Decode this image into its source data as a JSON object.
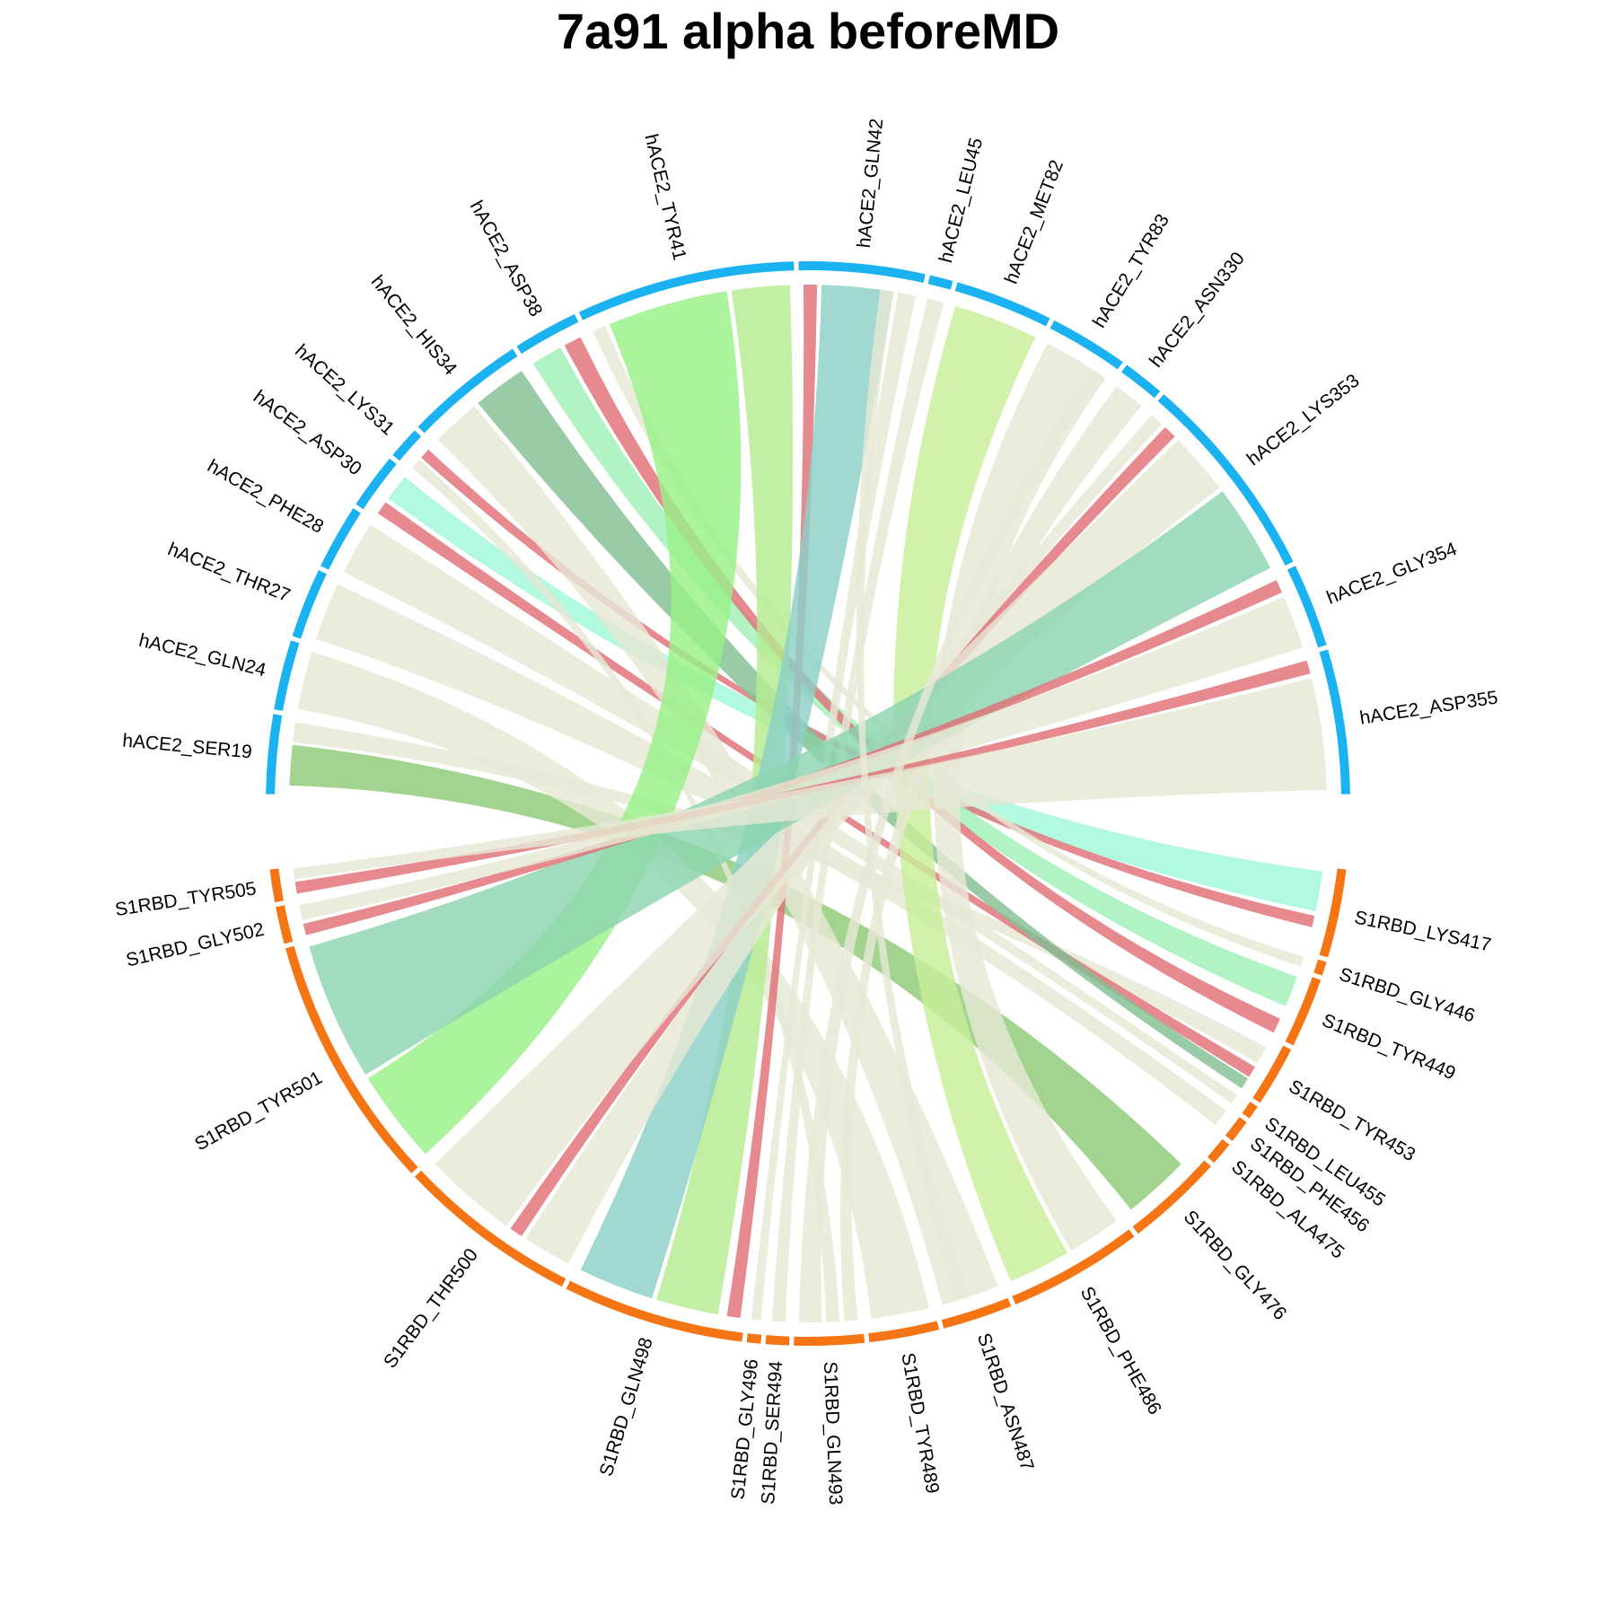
{
  "title": "7a91 alpha beforeMD",
  "colors": {
    "hACE2": "#1AB2F0",
    "S1RBD": "#F57514",
    "default_link": "#E6E8D4",
    "red_link": "#E07077"
  },
  "chart_data": {
    "type": "chord",
    "sectors": [
      {
        "name": "hACE2_SER19",
        "group": "hACE2",
        "start": 271,
        "end": 279.5
      },
      {
        "name": "hACE2_GLN24",
        "group": "hACE2",
        "start": 280,
        "end": 287.5
      },
      {
        "name": "hACE2_THR27",
        "group": "hACE2",
        "start": 288,
        "end": 295.5
      },
      {
        "name": "hACE2_PHE28",
        "group": "hACE2",
        "start": 296,
        "end": 303
      },
      {
        "name": "hACE2_ASP30",
        "group": "hACE2",
        "start": 303.5,
        "end": 309.5
      },
      {
        "name": "hACE2_LYS31",
        "group": "hACE2",
        "start": 310,
        "end": 313.5
      },
      {
        "name": "hACE2_HIS34",
        "group": "hACE2",
        "start": 314,
        "end": 327
      },
      {
        "name": "hACE2_ASP38",
        "group": "hACE2",
        "start": 327.5,
        "end": 334.5
      },
      {
        "name": "hACE2_TYR41",
        "group": "hACE2",
        "start": 335,
        "end": 358.5
      },
      {
        "name": "hACE2_GLN42",
        "group": "hACE2",
        "start": 359,
        "end": 12.5
      },
      {
        "name": "hACE2_LEU45",
        "group": "hACE2",
        "start": 13,
        "end": 15.5
      },
      {
        "name": "hACE2_MET82",
        "group": "hACE2",
        "start": 16,
        "end": 26.5
      },
      {
        "name": "hACE2_TYR83",
        "group": "hACE2",
        "start": 27,
        "end": 35.5
      },
      {
        "name": "hACE2_ASN330",
        "group": "hACE2",
        "start": 36,
        "end": 40.5
      },
      {
        "name": "hACE2_LYS353",
        "group": "hACE2",
        "start": 41,
        "end": 63.5
      },
      {
        "name": "hACE2_GLY354",
        "group": "hACE2",
        "start": 64,
        "end": 73
      },
      {
        "name": "hACE2_ASP355",
        "group": "hACE2",
        "start": 73.5,
        "end": 89
      },
      {
        "name": "S1RBD_LYS417",
        "group": "S1RBD",
        "start": 97,
        "end": 106.5
      },
      {
        "name": "S1RBD_GLY446",
        "group": "S1RBD",
        "start": 107,
        "end": 108.5
      },
      {
        "name": "S1RBD_TYR449",
        "group": "S1RBD",
        "start": 109,
        "end": 116.5
      },
      {
        "name": "S1RBD_TYR453",
        "group": "S1RBD",
        "start": 117,
        "end": 123.5
      },
      {
        "name": "S1RBD_LEU455",
        "group": "S1RBD",
        "start": 124,
        "end": 125.5
      },
      {
        "name": "S1RBD_PHE456",
        "group": "S1RBD",
        "start": 126,
        "end": 128.5
      },
      {
        "name": "S1RBD_ALA475",
        "group": "S1RBD",
        "start": 129,
        "end": 131.5
      },
      {
        "name": "S1RBD_GLY476",
        "group": "S1RBD",
        "start": 132,
        "end": 142.5
      },
      {
        "name": "S1RBD_PHE486",
        "group": "S1RBD",
        "start": 143,
        "end": 157.5
      },
      {
        "name": "S1RBD_ASN487",
        "group": "S1RBD",
        "start": 158,
        "end": 165.5
      },
      {
        "name": "S1RBD_TYR489",
        "group": "S1RBD",
        "start": 166,
        "end": 173.5
      },
      {
        "name": "S1RBD_GLN493",
        "group": "S1RBD",
        "start": 174,
        "end": 181.5
      },
      {
        "name": "S1RBD_SER494",
        "group": "S1RBD",
        "start": 182,
        "end": 184.5
      },
      {
        "name": "S1RBD_GLY496",
        "group": "S1RBD",
        "start": 185,
        "end": 186.5
      },
      {
        "name": "S1RBD_GLN498",
        "group": "S1RBD",
        "start": 187,
        "end": 206.5
      },
      {
        "name": "S1RBD_THR500",
        "group": "S1RBD",
        "start": 207,
        "end": 226.5
      },
      {
        "name": "S1RBD_TYR501",
        "group": "S1RBD",
        "start": 227,
        "end": 254.5
      },
      {
        "name": "S1RBD_GLY502",
        "group": "S1RBD",
        "start": 255,
        "end": 259
      },
      {
        "name": "S1RBD_TYR505",
        "group": "S1RBD",
        "start": 259.5,
        "end": 263
      }
    ],
    "links": [
      {
        "from": "hACE2_SER19",
        "to": "S1RBD_GLY476",
        "a": [
          272,
          276.5
        ],
        "b": [
          134,
          141.5
        ],
        "color": "#8FCB76"
      },
      {
        "from": "hACE2_SER19",
        "to": "S1RBD_TYR453",
        "a": [
          276.8,
          279
        ],
        "b": [
          118,
          120
        ],
        "color": "#E6E8D4"
      },
      {
        "from": "hACE2_GLN24",
        "to": "S1RBD_TYR489",
        "a": [
          280.5,
          287
        ],
        "b": [
          166.5,
          173
        ],
        "color": "#E6E8D4"
      },
      {
        "from": "hACE2_THR27",
        "to": "S1RBD_PHE456",
        "a": [
          288.5,
          295
        ],
        "b": [
          126.3,
          128.3
        ],
        "color": "#E6E8D4"
      },
      {
        "from": "hACE2_PHE28",
        "to": "S1RBD_LEU455",
        "a": [
          296.5,
          302.5
        ],
        "b": [
          124.2,
          125.3
        ],
        "color": "#E6E8D4"
      },
      {
        "from": "hACE2_ASP30",
        "to": "S1RBD_TYR453",
        "a": [
          304,
          305.5
        ],
        "b": [
          120.5,
          121.8
        ],
        "color": "#E07077"
      },
      {
        "from": "hACE2_ASP30",
        "to": "S1RBD_LYS417",
        "a": [
          306,
          309
        ],
        "b": [
          97.5,
          102
        ],
        "color": "#A0F8D8"
      },
      {
        "from": "hACE2_LYS31",
        "to": "S1RBD_GLN493",
        "a": [
          310.3,
          311.5
        ],
        "b": [
          176.5,
          178
        ],
        "color": "#E6E8D4"
      },
      {
        "from": "hACE2_LYS31",
        "to": "S1RBD_LYS417",
        "a": [
          311.8,
          313
        ],
        "b": [
          102.5,
          103.8
        ],
        "color": "#E07077"
      },
      {
        "from": "hACE2_HIS34",
        "to": "S1RBD_ASN487",
        "a": [
          314.5,
          320
        ],
        "b": [
          158.5,
          165
        ],
        "color": "#E6E8D4"
      },
      {
        "from": "hACE2_HIS34",
        "to": "S1RBD_TYR453",
        "a": [
          320.5,
          326.5
        ],
        "b": [
          122,
          123.3
        ],
        "color": "#84BF94"
      },
      {
        "from": "hACE2_ASP38",
        "to": "S1RBD_TYR449",
        "a": [
          328,
          331.5
        ],
        "b": [
          109.5,
          113
        ],
        "color": "#A0F0B8"
      },
      {
        "from": "hACE2_ASP38",
        "to": "S1RBD_TYR449",
        "a": [
          332,
          334
        ],
        "b": [
          114.5,
          116.2
        ],
        "color": "#E07077"
      },
      {
        "from": "hACE2_TYR41",
        "to": "S1RBD_GLY446",
        "a": [
          335.5,
          337
        ],
        "b": [
          107.2,
          108.3
        ],
        "color": "#E6E8D4"
      },
      {
        "from": "hACE2_TYR41",
        "to": "S1RBD_TYR501",
        "a": [
          337.5,
          351
        ],
        "b": [
          227.5,
          238
        ],
        "color": "#98F088"
      },
      {
        "from": "hACE2_TYR41",
        "to": "S1RBD_GLN498",
        "a": [
          351.5,
          358
        ],
        "b": [
          190,
          197
        ],
        "color": "#B6EC90"
      },
      {
        "from": "hACE2_GLN42",
        "to": "S1RBD_GLN498",
        "a": [
          359.5,
          1
        ],
        "b": [
          187.5,
          189
        ],
        "color": "#E07077"
      },
      {
        "from": "hACE2_GLN42",
        "to": "S1RBD_GLN498",
        "a": [
          1.5,
          9.5
        ],
        "b": [
          197.5,
          206
        ],
        "color": "#8CD0C8"
      },
      {
        "from": "hACE2_GLN42",
        "to": "S1RBD_GLY496",
        "a": [
          10,
          12
        ],
        "b": [
          185.2,
          186.3
        ],
        "color": "#E6E8D4"
      },
      {
        "from": "hACE2_LEU45",
        "to": "S1RBD_SER494",
        "a": [
          13.3,
          15.2
        ],
        "b": [
          182.5,
          184
        ],
        "color": "#E6E8D4"
      },
      {
        "from": "hACE2_MET82",
        "to": "S1RBD_PHE486",
        "a": [
          16.5,
          26
        ],
        "b": [
          150,
          157
        ],
        "color": "#C8EE98"
      },
      {
        "from": "hACE2_TYR83",
        "to": "S1RBD_PHE486",
        "a": [
          27.5,
          35
        ],
        "b": [
          143.5,
          149.5
        ],
        "color": "#E6E8D4"
      },
      {
        "from": "hACE2_ASN330",
        "to": "S1RBD_GLN493",
        "a": [
          36.5,
          40
        ],
        "b": [
          174.5,
          176
        ],
        "color": "#E6E8D4"
      },
      {
        "from": "hACE2_LYS353",
        "to": "S1RBD_THR500",
        "a": [
          41.5,
          43
        ],
        "b": [
          207.5,
          213
        ],
        "color": "#E6E8D4"
      },
      {
        "from": "hACE2_LYS353",
        "to": "S1RBD_THR500",
        "a": [
          43.5,
          45
        ],
        "b": [
          213.5,
          215
        ],
        "color": "#E07077"
      },
      {
        "from": "hACE2_LYS353",
        "to": "S1RBD_THR500",
        "a": [
          45.5,
          52.5
        ],
        "b": [
          215.5,
          226
        ],
        "color": "#E6E8D4"
      },
      {
        "from": "hACE2_LYS353",
        "to": "S1RBD_TYR501",
        "a": [
          53,
          63
        ],
        "b": [
          238.5,
          254
        ],
        "color": "#8CD4B0"
      },
      {
        "from": "hACE2_GLY354",
        "to": "S1RBD_GLY502",
        "a": [
          64.5,
          66
        ],
        "b": [
          255.3,
          256.6
        ],
        "color": "#E07077"
      },
      {
        "from": "hACE2_GLY354",
        "to": "S1RBD_GLY502",
        "a": [
          66.5,
          72.5
        ],
        "b": [
          257,
          258.7
        ],
        "color": "#E6E8D4"
      },
      {
        "from": "hACE2_ASP355",
        "to": "S1RBD_TYR505",
        "a": [
          74,
          75.5
        ],
        "b": [
          260,
          261.3
        ],
        "color": "#E07077"
      },
      {
        "from": "hACE2_ASP355",
        "to": "S1RBD_TYR505",
        "a": [
          76,
          88.5
        ],
        "b": [
          261.6,
          262.8
        ],
        "color": "#E6E8D4"
      },
      {
        "from": "hACE2_GLN42",
        "to": "S1RBD_ASN487",
        "a": [
          8,
          9.5
        ],
        "b": [
          162,
          163.5
        ],
        "color": "#E6E8D4"
      },
      {
        "from": "hACE2_TYR83",
        "to": "S1RBD_GLN493",
        "a": [
          33,
          34.5
        ],
        "b": [
          178.5,
          181
        ],
        "color": "#E6E8D4"
      }
    ]
  }
}
